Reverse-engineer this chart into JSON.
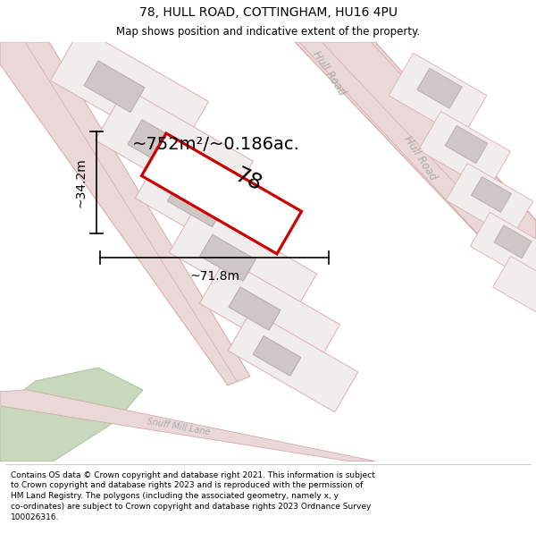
{
  "title": "78, HULL ROAD, COTTINGHAM, HU16 4PU",
  "subtitle": "Map shows position and indicative extent of the property.",
  "footer_line1": "Contains OS data © Crown copyright and database right 2021. This information is subject",
  "footer_line2": "to Crown copyright and database rights 2023 and is reproduced with the permission of",
  "footer_line3": "HM Land Registry. The polygons (including the associated geometry, namely x, y",
  "footer_line4": "co-ordinates) are subject to Crown copyright and database rights 2023 Ordnance Survey",
  "footer_line5": "100026316.",
  "area_text": "~752m²/~0.186ac.",
  "width_label": "~71.8m",
  "height_label": "~34.2m",
  "property_number": "78",
  "bg_color": "#ffffff",
  "map_bg": "#f7f0f0",
  "road_fill": "#ead8d8",
  "road_edge": "#d4a8a8",
  "plot_fill": "#f2eded",
  "plot_edge": "#dbb0b0",
  "building_fill": "#cfc6c6",
  "building_edge": "#b8a8a8",
  "highlight_color": "#cc0000",
  "green_fill": "#c8d8bc",
  "green_edge": "#a8c09a",
  "label_color": "#aaaaaa",
  "title_fontsize": 10,
  "subtitle_fontsize": 8.5,
  "footer_fontsize": 6.5
}
